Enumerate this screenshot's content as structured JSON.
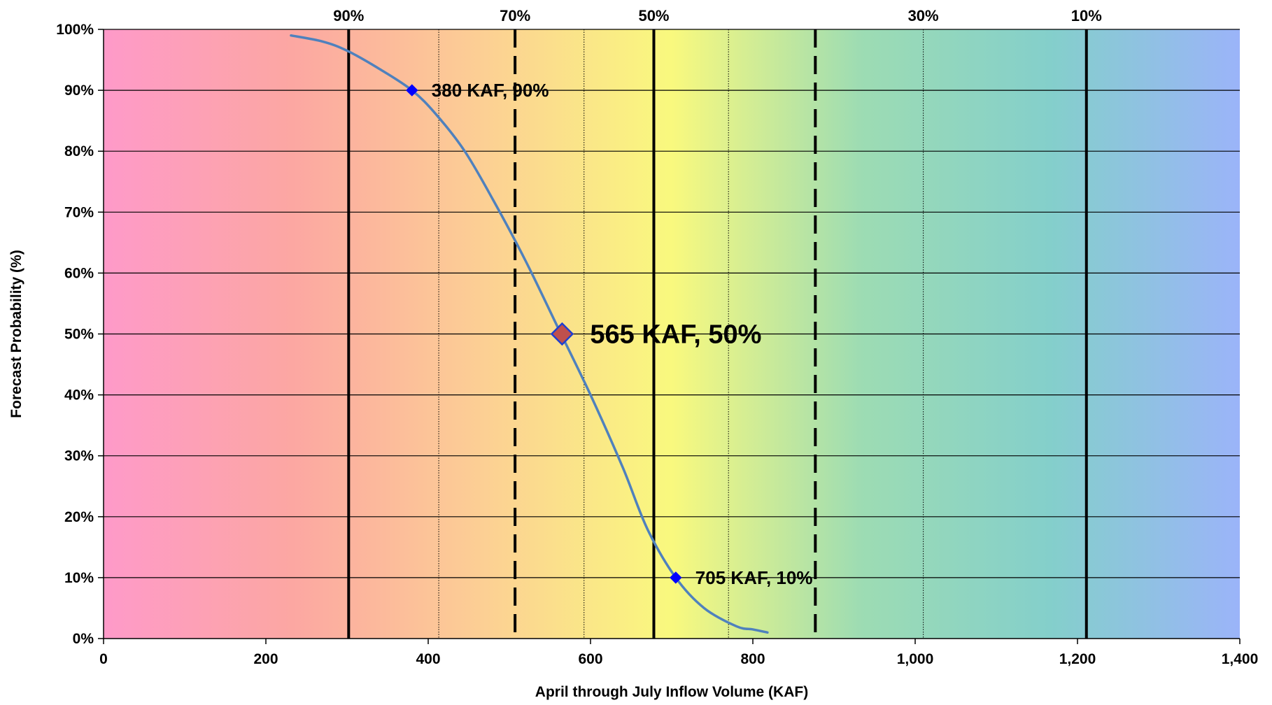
{
  "chart_data": {
    "type": "line",
    "xlabel": "April through July Inflow Volume (KAF)",
    "ylabel": "Forecast Probability (%)",
    "xlim": [
      0,
      1400
    ],
    "ylim": [
      0,
      100
    ],
    "x_ticks": [
      0,
      200,
      400,
      600,
      800,
      1000,
      1200,
      1400
    ],
    "x_tick_labels": [
      "0",
      "200",
      "400",
      "600",
      "800",
      "1,000",
      "1,200",
      "1,400"
    ],
    "y_ticks": [
      0,
      10,
      20,
      30,
      40,
      50,
      60,
      70,
      80,
      90,
      100
    ],
    "y_tick_labels": [
      "0%",
      "10%",
      "20%",
      "30%",
      "40%",
      "50%",
      "60%",
      "70%",
      "80%",
      "90%",
      "100%"
    ],
    "grid": "horizontal",
    "background": "gradient from pink (low volume) through orange, yellow, green to blue (high volume)",
    "background_colors": [
      "#fe9ac9",
      "#fca7a2",
      "#fccf94",
      "#f9f97e",
      "#9ddcb3",
      "#84cfcb",
      "#9bb4f9"
    ],
    "series": [
      {
        "x": [
          231,
          270,
          300,
          340,
          380,
          410,
          445,
          480,
          520,
          560,
          600,
          640,
          670,
          705,
          740,
          780,
          800,
          818
        ],
        "y": [
          99,
          98,
          96.5,
          93.5,
          90,
          86,
          80,
          72,
          62,
          51,
          40,
          28,
          18,
          10,
          5,
          2,
          1.5,
          1
        ],
        "color": "#4f81bd"
      }
    ],
    "points": [
      {
        "x": 380,
        "y": 90,
        "label": "380 KAF, 90%",
        "color": "#0000ff"
      },
      {
        "x": 565,
        "y": 50,
        "label": "565 KAF, 50%",
        "color": "#c0504d"
      },
      {
        "x": 705,
        "y": 10,
        "label": "705 KAF, 10%",
        "color": "#0000ff"
      }
    ],
    "reference_lines": [
      {
        "x": 302,
        "label": "90%",
        "style": "solid"
      },
      {
        "x": 507,
        "label": "70%",
        "style": "dashed"
      },
      {
        "x": 678,
        "label": "50%",
        "style": "solid"
      },
      {
        "x": 877,
        "label": "",
        "style": "dashed"
      },
      {
        "x": 1211,
        "label": "10%",
        "style": "solid"
      }
    ],
    "minor_lines": [
      {
        "x": 413,
        "label": ""
      },
      {
        "x": 592,
        "label": ""
      },
      {
        "x": 770,
        "label": ""
      },
      {
        "x": 1010,
        "label": "30%"
      }
    ]
  }
}
